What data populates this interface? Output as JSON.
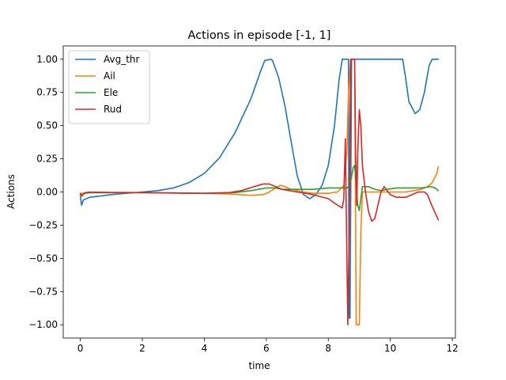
{
  "chart_data": {
    "type": "line",
    "title": "Actions in episode [-1, 1]",
    "xlabel": "time",
    "ylabel": "Actions",
    "xlim": [
      -0.55,
      12.1
    ],
    "ylim": [
      -1.1,
      1.1
    ],
    "xticks": [
      0,
      2,
      4,
      6,
      8,
      10,
      12
    ],
    "yticks": [
      -1.0,
      -0.75,
      -0.5,
      -0.25,
      0.0,
      0.25,
      0.5,
      0.75,
      1.0
    ],
    "xtick_labels": [
      "0",
      "2",
      "4",
      "6",
      "8",
      "10",
      "12"
    ],
    "ytick_labels": [
      "−1.00",
      "−0.75",
      "−0.50",
      "−0.25",
      "0.00",
      "0.25",
      "0.50",
      "0.75",
      "1.00"
    ],
    "grid": false,
    "legend_position": "top-left",
    "series": [
      {
        "name": "Avg_thr",
        "color": "#1f77b4",
        "points": [
          [
            0,
            -0.02
          ],
          [
            0.04,
            -0.1
          ],
          [
            0.1,
            -0.06
          ],
          [
            0.3,
            -0.04
          ],
          [
            1,
            -0.02
          ],
          [
            2,
            0.0
          ],
          [
            2.5,
            0.01
          ],
          [
            3,
            0.03
          ],
          [
            3.5,
            0.07
          ],
          [
            4,
            0.14
          ],
          [
            4.5,
            0.26
          ],
          [
            5,
            0.45
          ],
          [
            5.5,
            0.7
          ],
          [
            5.8,
            0.9
          ],
          [
            5.95,
            0.99
          ],
          [
            6.15,
            1.0
          ],
          [
            6.2,
            0.99
          ],
          [
            6.4,
            0.86
          ],
          [
            6.6,
            0.65
          ],
          [
            6.8,
            0.38
          ],
          [
            7.0,
            0.12
          ],
          [
            7.2,
            -0.02
          ],
          [
            7.4,
            -0.05
          ],
          [
            7.6,
            -0.02
          ],
          [
            7.8,
            0.05
          ],
          [
            8.0,
            0.2
          ],
          [
            8.2,
            0.5
          ],
          [
            8.35,
            0.85
          ],
          [
            8.45,
            1.0
          ],
          [
            8.65,
            1.0
          ],
          [
            8.67,
            -0.95
          ],
          [
            8.7,
            -0.95
          ],
          [
            8.75,
            1.0
          ],
          [
            10.4,
            1.0
          ],
          [
            10.5,
            0.85
          ],
          [
            10.6,
            0.68
          ],
          [
            10.8,
            0.59
          ],
          [
            10.95,
            0.62
          ],
          [
            11.1,
            0.75
          ],
          [
            11.25,
            0.95
          ],
          [
            11.35,
            1.0
          ],
          [
            11.55,
            1.0
          ]
        ]
      },
      {
        "name": "Ail",
        "color": "#ff7f0e",
        "points": [
          [
            0,
            -0.03
          ],
          [
            0.05,
            -0.01
          ],
          [
            0.3,
            -0.005
          ],
          [
            1,
            -0.005
          ],
          [
            2,
            -0.005
          ],
          [
            3,
            -0.008
          ],
          [
            4,
            -0.01
          ],
          [
            4.8,
            -0.015
          ],
          [
            5.5,
            -0.025
          ],
          [
            5.9,
            -0.02
          ],
          [
            6.1,
            0.0
          ],
          [
            6.3,
            0.03
          ],
          [
            6.45,
            0.05
          ],
          [
            6.6,
            0.04
          ],
          [
            6.8,
            0.02
          ],
          [
            7.2,
            0.0
          ],
          [
            7.5,
            -0.01
          ],
          [
            8.0,
            -0.01
          ],
          [
            8.3,
            0.0
          ],
          [
            8.5,
            0.05
          ],
          [
            8.6,
            0.3
          ],
          [
            8.65,
            0.75
          ],
          [
            8.72,
            1.0
          ],
          [
            8.85,
            1.0
          ],
          [
            8.9,
            -1.0
          ],
          [
            9.0,
            -1.0
          ],
          [
            9.05,
            -0.3
          ],
          [
            9.1,
            0.0
          ],
          [
            9.2,
            0.0
          ],
          [
            9.5,
            0.0
          ],
          [
            10,
            0.0
          ],
          [
            10.5,
            0.0
          ],
          [
            11,
            0.02
          ],
          [
            11.2,
            0.04
          ],
          [
            11.35,
            0.07
          ],
          [
            11.5,
            0.14
          ],
          [
            11.55,
            0.19
          ]
        ]
      },
      {
        "name": "Ele",
        "color": "#2ca02c",
        "points": [
          [
            0,
            -0.02
          ],
          [
            0.05,
            -0.03
          ],
          [
            0.15,
            -0.005
          ],
          [
            0.3,
            0.0
          ],
          [
            1,
            -0.003
          ],
          [
            2,
            -0.005
          ],
          [
            3,
            -0.007
          ],
          [
            4,
            -0.01
          ],
          [
            5,
            -0.005
          ],
          [
            5.5,
            0.01
          ],
          [
            6.0,
            0.03
          ],
          [
            6.3,
            0.03
          ],
          [
            6.5,
            0.02
          ],
          [
            7,
            0.02
          ],
          [
            7.5,
            0.02
          ],
          [
            8,
            0.03
          ],
          [
            8.5,
            0.03
          ],
          [
            8.6,
            0.03
          ],
          [
            8.7,
            0.05
          ],
          [
            8.8,
            0.18
          ],
          [
            8.85,
            0.2
          ],
          [
            8.9,
            0.05
          ],
          [
            8.95,
            -0.1
          ],
          [
            9.0,
            -0.14
          ],
          [
            9.05,
            -0.05
          ],
          [
            9.1,
            0.04
          ],
          [
            9.3,
            0.04
          ],
          [
            9.5,
            0.02
          ],
          [
            9.7,
            0.01
          ],
          [
            9.9,
            0.02
          ],
          [
            10.2,
            0.03
          ],
          [
            10.6,
            0.03
          ],
          [
            11.0,
            0.03
          ],
          [
            11.3,
            0.04
          ],
          [
            11.45,
            0.03
          ],
          [
            11.55,
            0.01
          ]
        ]
      },
      {
        "name": "Rud",
        "color": "#d62728",
        "points": [
          [
            0,
            -0.01
          ],
          [
            0.05,
            -0.03
          ],
          [
            0.12,
            -0.01
          ],
          [
            0.3,
            -0.005
          ],
          [
            1,
            -0.005
          ],
          [
            2,
            -0.005
          ],
          [
            3,
            -0.008
          ],
          [
            4,
            -0.01
          ],
          [
            4.8,
            -0.005
          ],
          [
            5.2,
            0.01
          ],
          [
            5.6,
            0.04
          ],
          [
            5.9,
            0.06
          ],
          [
            6.1,
            0.06
          ],
          [
            6.3,
            0.04
          ],
          [
            6.5,
            0.02
          ],
          [
            7,
            0.0
          ],
          [
            7.5,
            -0.02
          ],
          [
            8.0,
            -0.05
          ],
          [
            8.3,
            -0.1
          ],
          [
            8.45,
            -0.12
          ],
          [
            8.5,
            -0.05
          ],
          [
            8.55,
            0.4
          ],
          [
            8.6,
            -0.5
          ],
          [
            8.63,
            -1.0
          ],
          [
            8.68,
            -0.2
          ],
          [
            8.72,
            1.0
          ],
          [
            8.85,
            1.0
          ],
          [
            8.88,
            0.3
          ],
          [
            8.92,
            -0.1
          ],
          [
            8.95,
            0.3
          ],
          [
            9.0,
            0.62
          ],
          [
            9.05,
            0.5
          ],
          [
            9.1,
            0.2
          ],
          [
            9.2,
            0.0
          ],
          [
            9.3,
            -0.15
          ],
          [
            9.4,
            -0.22
          ],
          [
            9.5,
            -0.2
          ],
          [
            9.6,
            -0.1
          ],
          [
            9.7,
            0.0
          ],
          [
            9.8,
            0.04
          ],
          [
            9.9,
            0.01
          ],
          [
            10.0,
            -0.02
          ],
          [
            10.2,
            -0.04
          ],
          [
            10.5,
            -0.04
          ],
          [
            10.7,
            -0.02
          ],
          [
            10.9,
            0.0
          ],
          [
            11.1,
            0.0
          ],
          [
            11.2,
            -0.02
          ],
          [
            11.3,
            -0.08
          ],
          [
            11.45,
            -0.16
          ],
          [
            11.55,
            -0.21
          ]
        ]
      }
    ]
  }
}
